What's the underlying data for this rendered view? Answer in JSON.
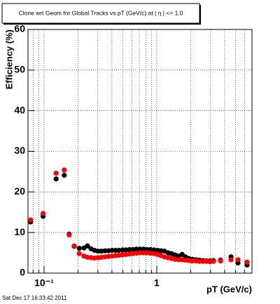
{
  "chart_data": {
    "type": "scatter",
    "title": "Clone wrt Geom for Global Tracks vs pT (GeV/c) at | η | <= 1.0",
    "x_label": "pT (GeV/c)",
    "y_label": "Efficiency (%)",
    "footer": "Sat Dec 17 16:33:42 2011",
    "xlog": true,
    "grid": true,
    "xlim": [
      0.072,
      7.0
    ],
    "ylim": [
      0,
      60
    ],
    "xticks": [
      {
        "value": 0.1,
        "label": "10⁻¹"
      },
      1
    ],
    "xminorticks": [
      0.08,
      0.09,
      0.2,
      0.3,
      0.4,
      0.5,
      0.6,
      0.7,
      0.8,
      0.9,
      2,
      3,
      4,
      5,
      6,
      7
    ],
    "yticks": [
      0,
      10,
      20,
      30,
      40,
      50,
      60
    ],
    "x": [
      0.076,
      0.098,
      0.128,
      0.151,
      0.167,
      0.185,
      0.205,
      0.226,
      0.243,
      0.261,
      0.28,
      0.301,
      0.323,
      0.347,
      0.373,
      0.401,
      0.431,
      0.462,
      0.497,
      0.533,
      0.573,
      0.616,
      0.661,
      0.71,
      0.763,
      0.82,
      0.88,
      0.946,
      1.02,
      1.09,
      1.17,
      1.26,
      1.35,
      1.45,
      1.56,
      1.68,
      1.8,
      1.93,
      2.07,
      2.23,
      2.39,
      2.57,
      2.76,
      2.97,
      3.19,
      3.68,
      4.56,
      5.26,
      6.33
    ],
    "series": [
      {
        "color": "#000000",
        "values": [
          12.6,
          14.0,
          23.2,
          24.1,
          9.6,
          6.6,
          6.1,
          6.2,
          6.7,
          6.0,
          5.6,
          5.4,
          5.4,
          5.5,
          5.5,
          5.6,
          5.6,
          5.6,
          5.7,
          5.7,
          5.8,
          5.8,
          5.9,
          5.9,
          5.9,
          5.8,
          5.8,
          5.7,
          5.6,
          5.5,
          5.4,
          5.0,
          4.8,
          4.5,
          4.2,
          4.6,
          4.0,
          3.6,
          3.4,
          3.3,
          3.2,
          3.1,
          3.0,
          3.0,
          3.1,
          3.2,
          4.0,
          2.5,
          2.0
        ]
      },
      {
        "color": "#ff0000",
        "values": [
          13.1,
          14.7,
          24.6,
          25.4,
          9.4,
          6.7,
          4.8,
          4.2,
          3.9,
          3.8,
          3.7,
          3.8,
          3.9,
          4.0,
          4.1,
          4.2,
          4.3,
          4.4,
          4.5,
          4.6,
          4.7,
          4.8,
          4.9,
          5.0,
          5.0,
          5.0,
          4.9,
          4.8,
          4.6,
          4.3,
          4.0,
          3.8,
          3.6,
          3.4,
          3.3,
          3.3,
          3.2,
          3.1,
          3.0,
          3.0,
          2.9,
          2.9,
          2.9,
          2.8,
          2.9,
          3.0,
          3.3,
          3.3,
          2.7
        ]
      }
    ]
  }
}
